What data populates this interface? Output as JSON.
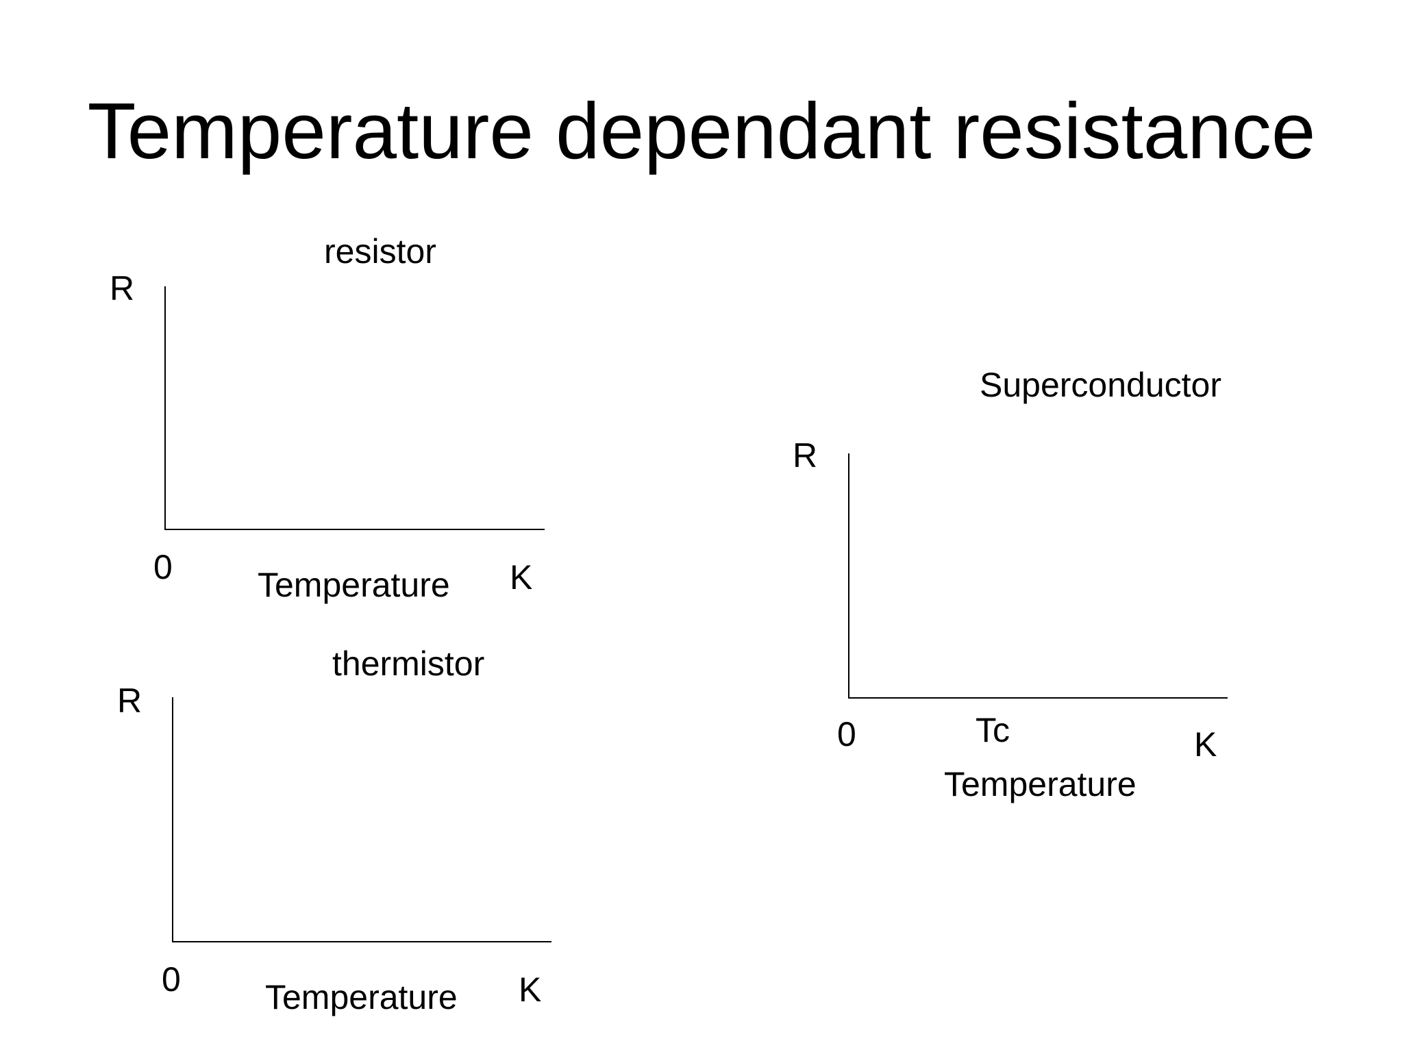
{
  "slide": {
    "title": "Temperature dependant resistance"
  },
  "graphs": {
    "resistor": {
      "title": "resistor",
      "y_label": "R",
      "origin_label": "0",
      "x_label": "Temperature",
      "x_unit": "K"
    },
    "thermistor": {
      "title": "thermistor",
      "y_label": "R",
      "origin_label": "0",
      "x_label": "Temperature",
      "x_unit": "K"
    },
    "superconductor": {
      "title": "Superconductor",
      "y_label": "R",
      "origin_label": "0",
      "critical_temp_label": "Tc",
      "x_label": "Temperature",
      "x_unit": "K"
    }
  },
  "colors": {
    "background": "#ffffff",
    "ink": "#000000"
  }
}
